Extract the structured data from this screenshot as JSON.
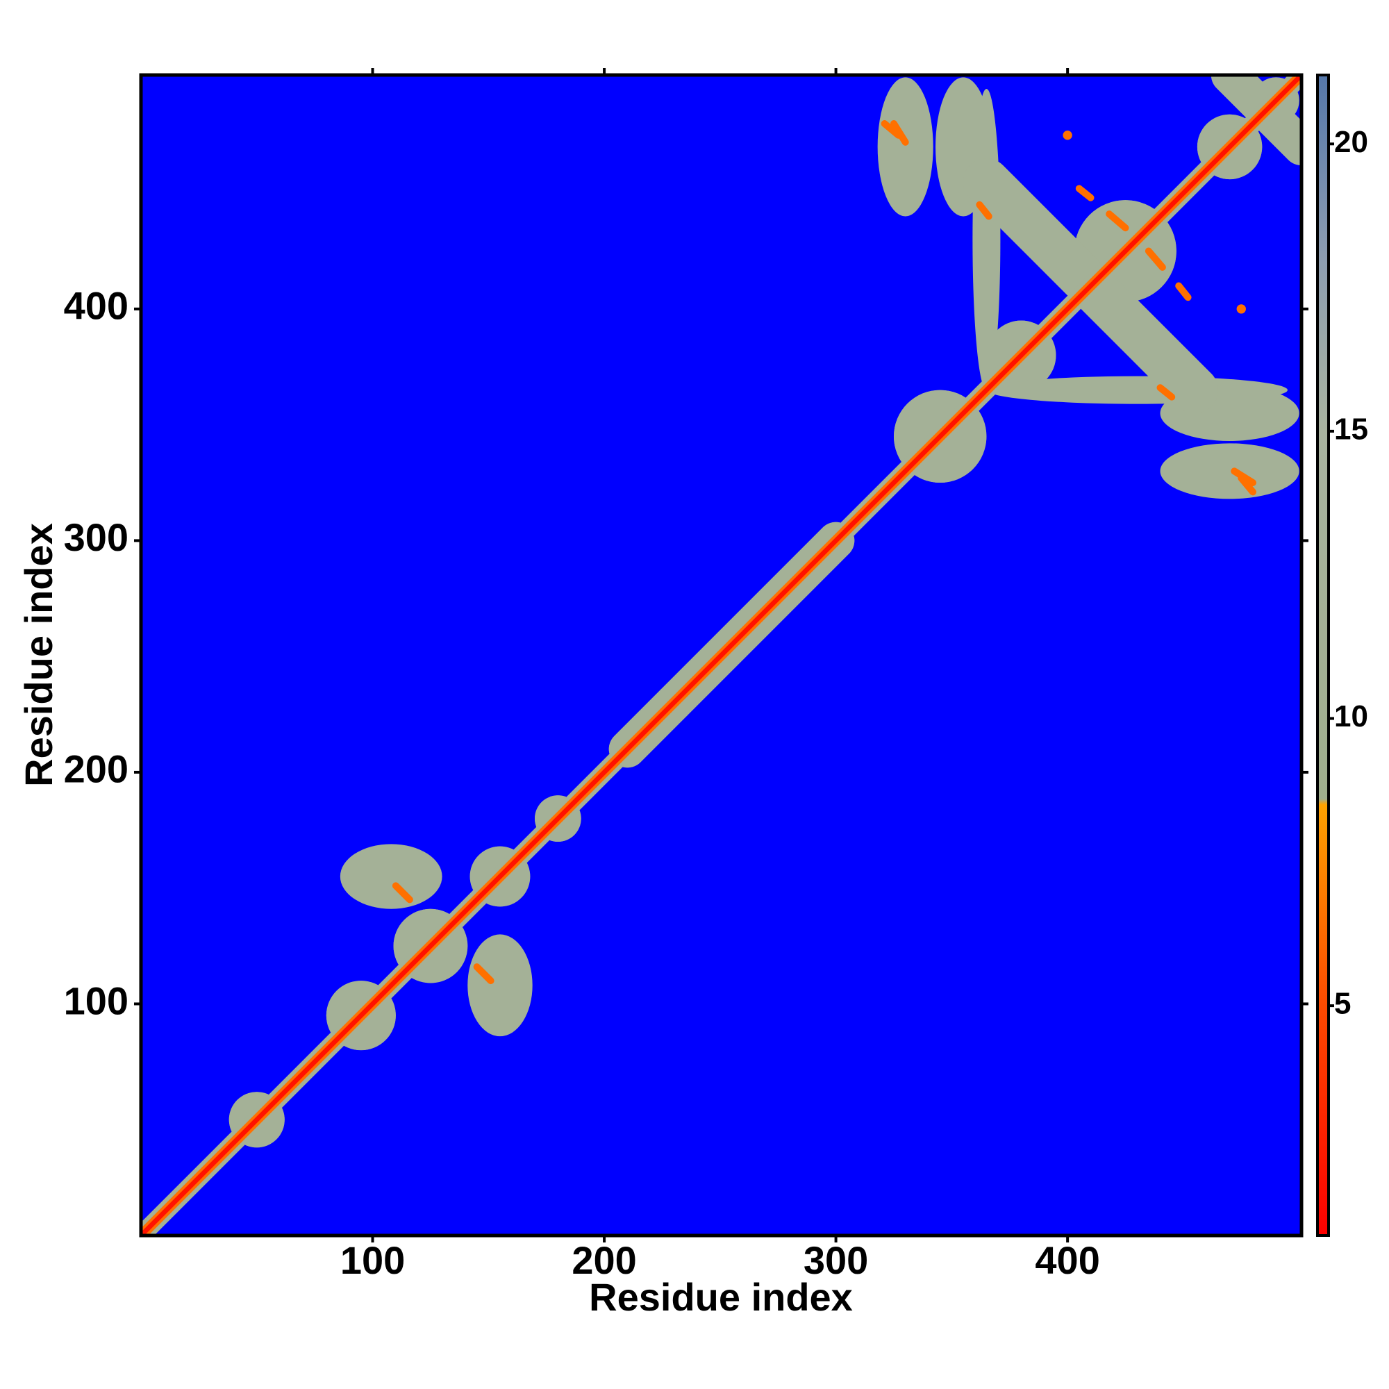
{
  "chart_data": {
    "type": "heatmap",
    "xlabel": "Residue index",
    "ylabel": "Residue index",
    "xlim": [
      0,
      501
    ],
    "ylim": [
      0,
      501
    ],
    "xticks": [
      100,
      200,
      300,
      400
    ],
    "yticks": [
      100,
      200,
      300,
      400
    ],
    "zlim": [
      1,
      21.2
    ],
    "zticks": [
      5,
      10,
      15,
      20
    ],
    "background_color": "#0000ff",
    "symmetric": true,
    "colorscale": [
      {
        "value": 1,
        "color": "#ff0000"
      },
      {
        "value": 5,
        "color": "#ff4a00"
      },
      {
        "value": 8.5,
        "color": "#ffa200"
      },
      {
        "value": 8.6,
        "color": "#9fae8c"
      },
      {
        "value": 15,
        "color": "#a9b3a0"
      },
      {
        "value": 18,
        "color": "#8d9db0"
      },
      {
        "value": 21.2,
        "color": "#5577aa"
      }
    ],
    "features": [
      {
        "kind": "blob",
        "x": 50,
        "y": 50,
        "rx": 12,
        "ry": 12,
        "value": 12
      },
      {
        "kind": "blob",
        "x": 95,
        "y": 95,
        "rx": 15,
        "ry": 15,
        "value": 12
      },
      {
        "kind": "blob",
        "x": 125,
        "y": 125,
        "rx": 16,
        "ry": 16,
        "value": 12
      },
      {
        "kind": "blob",
        "x": 155,
        "y": 155,
        "rx": 13,
        "ry": 13,
        "value": 12
      },
      {
        "kind": "blob",
        "x": 180,
        "y": 180,
        "rx": 10,
        "ry": 10,
        "value": 12
      },
      {
        "kind": "blob",
        "x": 108,
        "y": 155,
        "rx": 22,
        "ry": 14,
        "value": 12
      },
      {
        "kind": "blob",
        "x": 230,
        "y": 230,
        "rx": 8,
        "ry": 8,
        "value": 12
      },
      {
        "kind": "blob",
        "x": 345,
        "y": 345,
        "rx": 20,
        "ry": 20,
        "value": 12
      },
      {
        "kind": "blob",
        "x": 380,
        "y": 380,
        "rx": 15,
        "ry": 15,
        "value": 12
      },
      {
        "kind": "blob",
        "x": 425,
        "y": 425,
        "rx": 22,
        "ry": 22,
        "value": 12
      },
      {
        "kind": "blob",
        "x": 470,
        "y": 470,
        "rx": 14,
        "ry": 14,
        "value": 12
      },
      {
        "kind": "blob",
        "x": 490,
        "y": 490,
        "rx": 10,
        "ry": 10,
        "value": 12
      },
      {
        "kind": "blob",
        "x": 365,
        "y": 430,
        "rx": 6,
        "ry": 65,
        "value": 12
      },
      {
        "kind": "blob",
        "x": 330,
        "y": 470,
        "rx": 12,
        "ry": 30,
        "value": 12
      },
      {
        "kind": "blob",
        "x": 355,
        "y": 470,
        "rx": 12,
        "ry": 30,
        "value": 12
      },
      {
        "kind": "streak",
        "x": [
          365,
          455
        ],
        "y": [
          455,
          365
        ],
        "width": 10,
        "value": 12
      },
      {
        "kind": "streak",
        "x": [
          470,
          501
        ],
        "y": [
          501,
          470
        ],
        "width": 8,
        "value": 12
      },
      {
        "kind": "streak",
        "x": [
          0,
          501
        ],
        "y": [
          0,
          501
        ],
        "width": 4,
        "value": 12
      },
      {
        "kind": "streak",
        "x": [
          210,
          300
        ],
        "y": [
          210,
          300
        ],
        "width": 8,
        "value": 12
      },
      {
        "kind": "streak",
        "x": [
          0,
          501
        ],
        "y": [
          0,
          501
        ],
        "width": 2.2,
        "value": 6.5
      },
      {
        "kind": "streak",
        "x": [
          0,
          501
        ],
        "y": [
          0,
          501
        ],
        "width": 1,
        "value": 2
      },
      {
        "kind": "streak",
        "x": [
          110,
          116
        ],
        "y": [
          151,
          145
        ],
        "width": 1.5,
        "value": 6.5
      },
      {
        "kind": "streak",
        "x": [
          325,
          330
        ],
        "y": [
          480,
          472
        ],
        "width": 1.5,
        "value": 6.5
      },
      {
        "kind": "streak",
        "x": [
          362,
          366
        ],
        "y": [
          445,
          440
        ],
        "width": 1.5,
        "value": 6.5
      },
      {
        "kind": "streak",
        "x": [
          418,
          425
        ],
        "y": [
          441,
          435
        ],
        "width": 1.5,
        "value": 6.5
      },
      {
        "kind": "streak",
        "x": [
          448,
          452
        ],
        "y": [
          410,
          405
        ],
        "width": 1.5,
        "value": 6.5
      },
      {
        "kind": "streak",
        "x": [
          475,
          480
        ],
        "y": [
          327,
          321
        ],
        "width": 1.5,
        "value": 6.5
      },
      {
        "kind": "blob",
        "x": 400,
        "y": 475,
        "rx": 2,
        "ry": 2,
        "value": 6.5
      }
    ]
  }
}
